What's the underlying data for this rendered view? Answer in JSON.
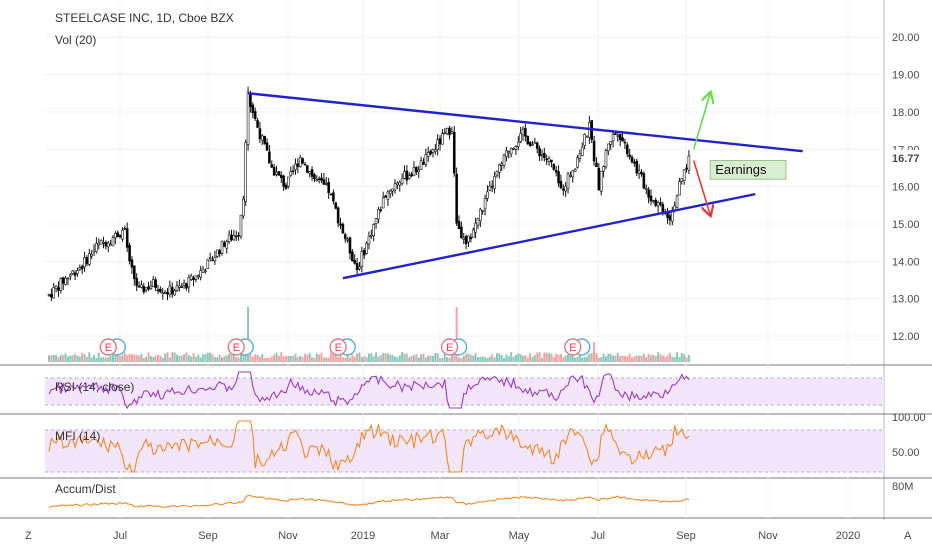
{
  "chart_data": {
    "type": "candlestick",
    "title": "STEELCASE INC, 1D, Cboe BZX",
    "volume_label": "Vol (20)",
    "price_axis": {
      "ticks": [
        "20.00",
        "19.00",
        "18.00",
        "17.00",
        "16.00",
        "15.00",
        "14.00",
        "13.00",
        "12.00"
      ],
      "ylim": [
        11.2,
        20.3
      ]
    },
    "last_price": "16.77",
    "x_axis": {
      "labels": [
        "Jul",
        "Sep",
        "Nov",
        "2019",
        "Mar",
        "May",
        "Jul",
        "Sep",
        "Nov",
        "2020"
      ]
    },
    "ohlc_anchors": [
      {
        "t": 0,
        "v": 13.1
      },
      {
        "t": 8,
        "v": 13.6
      },
      {
        "t": 14,
        "v": 13.9
      },
      {
        "t": 20,
        "v": 14.4
      },
      {
        "t": 26,
        "v": 14.6
      },
      {
        "t": 32,
        "v": 14.85
      },
      {
        "t": 34,
        "v": 13.9
      },
      {
        "t": 38,
        "v": 13.2
      },
      {
        "t": 44,
        "v": 13.4
      },
      {
        "t": 50,
        "v": 13.2
      },
      {
        "t": 56,
        "v": 13.3
      },
      {
        "t": 62,
        "v": 13.6
      },
      {
        "t": 68,
        "v": 14.0
      },
      {
        "t": 74,
        "v": 14.5
      },
      {
        "t": 80,
        "v": 14.8
      },
      {
        "t": 82,
        "v": 15.8
      },
      {
        "t": 84,
        "v": 18.4
      },
      {
        "t": 88,
        "v": 17.6
      },
      {
        "t": 94,
        "v": 16.5
      },
      {
        "t": 100,
        "v": 16.0
      },
      {
        "t": 106,
        "v": 16.8
      },
      {
        "t": 112,
        "v": 16.2
      },
      {
        "t": 118,
        "v": 15.9
      },
      {
        "t": 124,
        "v": 14.8
      },
      {
        "t": 130,
        "v": 13.8
      },
      {
        "t": 136,
        "v": 14.8
      },
      {
        "t": 142,
        "v": 15.8
      },
      {
        "t": 148,
        "v": 16.2
      },
      {
        "t": 154,
        "v": 16.4
      },
      {
        "t": 160,
        "v": 16.8
      },
      {
        "t": 166,
        "v": 17.3
      },
      {
        "t": 170,
        "v": 17.6
      },
      {
        "t": 172,
        "v": 15.0
      },
      {
        "t": 176,
        "v": 14.4
      },
      {
        "t": 182,
        "v": 15.3
      },
      {
        "t": 188,
        "v": 16.2
      },
      {
        "t": 194,
        "v": 17.0
      },
      {
        "t": 200,
        "v": 17.4
      },
      {
        "t": 206,
        "v": 17.0
      },
      {
        "t": 212,
        "v": 16.6
      },
      {
        "t": 216,
        "v": 15.9
      },
      {
        "t": 222,
        "v": 16.6
      },
      {
        "t": 228,
        "v": 17.6
      },
      {
        "t": 232,
        "v": 16.0
      },
      {
        "t": 236,
        "v": 17.2
      },
      {
        "t": 240,
        "v": 17.5
      },
      {
        "t": 244,
        "v": 17.0
      },
      {
        "t": 250,
        "v": 16.2
      },
      {
        "t": 254,
        "v": 15.7
      },
      {
        "t": 258,
        "v": 15.5
      },
      {
        "t": 262,
        "v": 15.2
      },
      {
        "t": 266,
        "v": 16.0
      },
      {
        "t": 270,
        "v": 16.77
      }
    ],
    "volume_spikes": [
      {
        "t": 29,
        "v": 0.15
      },
      {
        "t": 84,
        "v": 0.55
      },
      {
        "t": 172,
        "v": 0.55
      },
      {
        "t": 230,
        "v": 0.2
      }
    ],
    "earnings_dates": [
      {
        "t": 25
      },
      {
        "t": 79
      },
      {
        "t": 122
      },
      {
        "t": 169
      },
      {
        "t": 221
      }
    ],
    "earnings_marker_label": "E",
    "trendlines": [
      {
        "name": "upper",
        "from": {
          "t": 84,
          "v": 18.5
        },
        "to": {
          "t": 318,
          "v": 16.95
        }
      },
      {
        "name": "lower",
        "from": {
          "t": 124,
          "v": 13.55
        },
        "to": {
          "t": 298,
          "v": 15.8
        }
      }
    ],
    "arrows": [
      {
        "name": "up",
        "color": "#66dd44",
        "from": {
          "t": 272,
          "v": 17.0
        },
        "to": {
          "t": 279,
          "v": 18.5
        }
      },
      {
        "name": "down",
        "color": "#e53935",
        "from": {
          "t": 272,
          "v": 16.7
        },
        "to": {
          "t": 279,
          "v": 15.25
        }
      }
    ],
    "earnings_annotation": {
      "text": "Earnings",
      "from": {
        "t": 279,
        "v": 16.7
      },
      "to": {
        "t": 311,
        "v": 16.2
      }
    },
    "indicators": [
      {
        "name": "RSI (14, close)",
        "band": [
          30,
          70
        ]
      },
      {
        "name": "MFI (14)",
        "band": [
          20,
          80
        ],
        "ticks": [
          "100.00",
          "50.00"
        ]
      },
      {
        "name": "Accum/Dist",
        "ticks": [
          "80M"
        ]
      }
    ],
    "footer": {
      "left": "Z",
      "right": "A"
    },
    "colors": {
      "up": "#ffffff",
      "down": "#000000",
      "trend": "#2222cc",
      "vol_up": "#86c9bd",
      "vol_down": "#f2a3a3",
      "rsi": "#9b3cc7",
      "mfi": "#f08a24",
      "ad": "#f08a24",
      "band": "#f3e6fb"
    }
  }
}
